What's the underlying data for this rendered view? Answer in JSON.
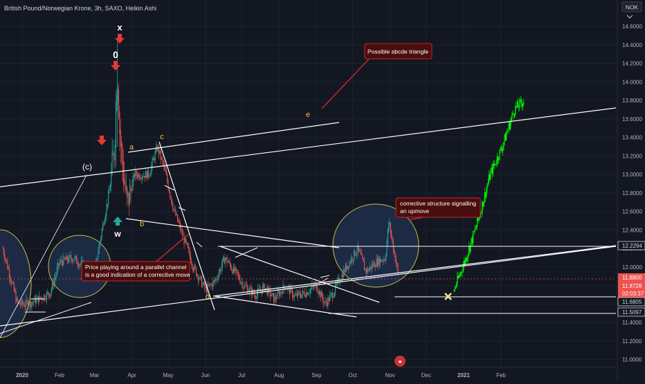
{
  "header": {
    "symbol_info": "British Pound/Norwegian Krone, 3h, SAXO, Heikin Ashi",
    "currency_button": "NOK",
    "menu_icon": "chevron-down-icon"
  },
  "colors": {
    "background": "#131722",
    "grid": "#1e2230",
    "axis_text": "#b2b5be",
    "bull": "#26a69a",
    "bear": "#ef5350",
    "projection": "#00ff00",
    "trendline": "#ffffff",
    "wave_label": "#f5c242",
    "callout_bg": "#4a0d0d",
    "callout_border": "#c62828",
    "circle_fill": "#1d2a44",
    "circle_stroke": "#c9c043"
  },
  "chart_data": {
    "type": "candlestick",
    "style": "Heikin Ashi",
    "interval": "3h",
    "ylim": [
      10.9,
      14.85
    ],
    "yticks": [
      "14.6000",
      "14.4000",
      "14.2000",
      "14.0000",
      "13.8000",
      "13.6000",
      "13.4000",
      "13.2000",
      "13.0000",
      "12.8000",
      "12.6000",
      "12.4000",
      "12.2000",
      "12.0000",
      "11.8000",
      "11.6000",
      "11.4000",
      "11.2000",
      "11.0000"
    ],
    "xticks": [
      "2020",
      "Feb",
      "Mar",
      "Apr",
      "May",
      "Jun",
      "Jul",
      "Aug",
      "Sep",
      "Oct",
      "Nov",
      "Dec",
      "2021",
      "Feb"
    ],
    "price_path": [
      [
        "2019-12-16",
        12.2
      ],
      [
        "2019-12-28",
        11.6
      ],
      [
        "2020-01-05",
        11.6
      ],
      [
        "2020-01-14",
        11.65
      ],
      [
        "2020-01-24",
        11.72
      ],
      [
        "2020-02-01",
        12.05
      ],
      [
        "2020-02-12",
        12.1
      ],
      [
        "2020-02-22",
        12.0
      ],
      [
        "2020-03-01",
        11.95
      ],
      [
        "2020-03-07",
        12.4
      ],
      [
        "2020-03-13",
        12.8
      ],
      [
        "2020-03-17",
        13.2
      ],
      [
        "2020-03-20",
        14.2
      ],
      [
        "2020-03-22",
        13.4
      ],
      [
        "2020-03-25",
        13.0
      ],
      [
        "2020-03-28",
        12.65
      ],
      [
        "2020-04-03",
        13.0
      ],
      [
        "2020-04-15",
        13.0
      ],
      [
        "2020-04-22",
        13.3
      ],
      [
        "2020-04-28",
        13.05
      ],
      [
        "2020-05-06",
        12.6
      ],
      [
        "2020-05-14",
        12.3
      ],
      [
        "2020-05-22",
        12.0
      ],
      [
        "2020-06-01",
        11.75
      ],
      [
        "2020-06-09",
        11.85
      ],
      [
        "2020-06-17",
        12.1
      ],
      [
        "2020-06-25",
        11.95
      ],
      [
        "2020-07-03",
        11.8
      ],
      [
        "2020-07-12",
        11.7
      ],
      [
        "2020-07-20",
        11.78
      ],
      [
        "2020-07-28",
        11.65
      ],
      [
        "2020-08-06",
        11.8
      ],
      [
        "2020-08-14",
        11.68
      ],
      [
        "2020-08-22",
        11.72
      ],
      [
        "2020-09-01",
        11.8
      ],
      [
        "2020-09-08",
        11.6
      ],
      [
        "2020-09-14",
        11.7
      ],
      [
        "2020-09-22",
        11.92
      ],
      [
        "2020-09-28",
        12.05
      ],
      [
        "2020-10-05",
        12.2
      ],
      [
        "2020-10-12",
        11.95
      ],
      [
        "2020-10-20",
        12.05
      ],
      [
        "2020-10-28",
        12.1
      ],
      [
        "2020-10-31",
        12.5
      ],
      [
        "2020-11-03",
        12.25
      ],
      [
        "2020-11-06",
        12.05
      ],
      [
        "2020-11-08",
        11.89
      ]
    ],
    "projection_path": [
      [
        "2020-12-24",
        11.75
      ],
      [
        "2021-01-03",
        12.1
      ],
      [
        "2021-01-13",
        12.5
      ],
      [
        "2021-01-23",
        13.0
      ],
      [
        "2021-02-02",
        13.3
      ],
      [
        "2021-02-12",
        13.7
      ],
      [
        "2021-02-20",
        13.8
      ]
    ],
    "price_labels": [
      {
        "text": "12.2294",
        "value": 12.2294,
        "style": "outline"
      },
      {
        "text": "11.8800",
        "value": 11.88,
        "style": "red"
      },
      {
        "text": "11.8728",
        "value": 11.8728,
        "style": "red"
      },
      {
        "text": "02:03:37",
        "value": 11.7,
        "style": "red"
      },
      {
        "text": "11.6805",
        "value": 11.6805,
        "style": "outline"
      },
      {
        "text": "11.5097",
        "value": 11.5097,
        "style": "outline"
      }
    ]
  },
  "annotations": {
    "wave_x": "x",
    "wave_0": "0",
    "wave_w": "w",
    "wave_c_paren": "(c)",
    "wave_a": "a",
    "wave_b": "b",
    "wave_c": "c",
    "wave_d": "d",
    "wave_e": "e",
    "callout_triangle": "Possible abcde triangle",
    "callout_channel_line1": "Price playing around a parallel channel",
    "callout_channel_line2": "is a good indication of a corrective move",
    "callout_corrective_line1": "corrective structure signalling",
    "callout_corrective_line2": "an upmove"
  }
}
